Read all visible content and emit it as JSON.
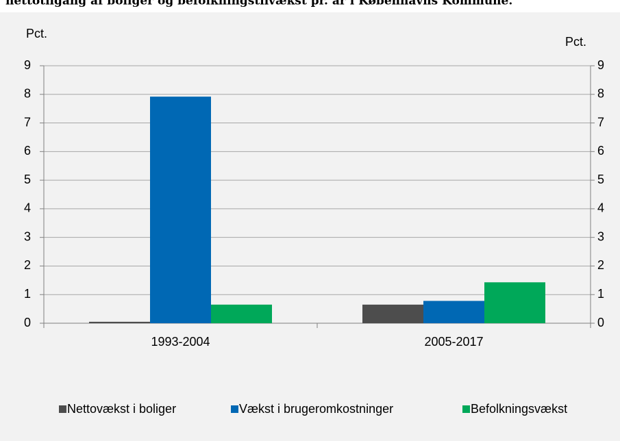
{
  "chart_data": {
    "type": "bar",
    "title": "nettotilgang af boliger og befolkningstilvækst pr. år i Københavns Kommune.",
    "y_label": "Pct.",
    "y2_label": "Pct.",
    "categories": [
      "1993-2004",
      "2005-2017"
    ],
    "series": [
      {
        "name": "Nettovækst i boliger",
        "color": "#4d4d4d",
        "values": [
          0.05,
          0.65
        ]
      },
      {
        "name": "Vækst i brugeromkostninger",
        "color": "#0068b4",
        "values": [
          7.92,
          0.78
        ]
      },
      {
        "name": "Befolkningsvækst",
        "color": "#00a859",
        "values": [
          0.65,
          1.43
        ]
      }
    ],
    "ylim": [
      0,
      9
    ],
    "yticks": [
      0,
      1,
      2,
      3,
      4,
      5,
      6,
      7,
      8,
      9
    ],
    "y2lim": [
      0,
      9
    ],
    "y2ticks": [
      0,
      1,
      2,
      3,
      4,
      5,
      6,
      7,
      8,
      9
    ],
    "grid": true,
    "legend": "bottom"
  }
}
